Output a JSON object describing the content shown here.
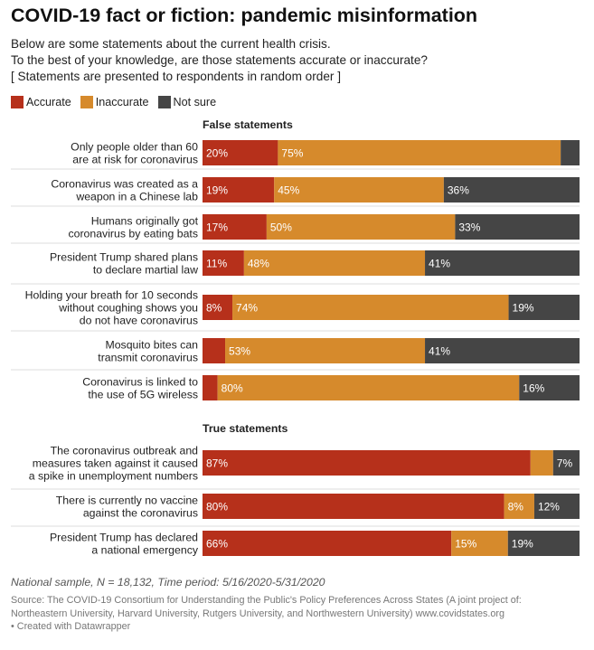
{
  "title": "COVID-19 fact or fiction: pandemic misinformation",
  "subtitle": [
    "Below are some statements about the current health crisis.",
    "To the best of your knowledge, are those statements accurate or inaccurate?",
    "[ Statements are presented to respondents in random order ]"
  ],
  "colors": {
    "accurate": "#b6301b",
    "inaccurate": "#d68a2c",
    "not_sure": "#454545"
  },
  "chart_data": {
    "type": "bar",
    "orientation": "horizontal",
    "stacked": true,
    "normalized_to": 100,
    "legend": {
      "position": "top-left",
      "entries": [
        "Accurate",
        "Inaccurate",
        "Not sure"
      ]
    },
    "groups": [
      {
        "label": "False statements",
        "rows": [
          {
            "label": [
              "Only people older than 60",
              "are at risk for coronavirus"
            ],
            "values": [
              20,
              75,
              5
            ],
            "labels": [
              "20%",
              "75%",
              ""
            ]
          },
          {
            "label": [
              "Coronavirus was created as a",
              "weapon in a Chinese lab"
            ],
            "values": [
              19,
              45,
              36
            ],
            "labels": [
              "19%",
              "45%",
              "36%"
            ]
          },
          {
            "label": [
              "Humans originally got",
              "coronavirus by eating bats"
            ],
            "values": [
              17,
              50,
              33
            ],
            "labels": [
              "17%",
              "50%",
              "33%"
            ]
          },
          {
            "label": [
              "President Trump shared plans",
              "to declare martial law"
            ],
            "values": [
              11,
              48,
              41
            ],
            "labels": [
              "11%",
              "48%",
              "41%"
            ]
          },
          {
            "label": [
              "Holding your breath for 10 seconds",
              "without coughing shows you",
              "do not have coronavirus"
            ],
            "values": [
              8,
              74,
              19
            ],
            "labels": [
              "8%",
              "74%",
              "19%"
            ]
          },
          {
            "label": [
              "Mosquito bites can",
              "transmit coronavirus"
            ],
            "values": [
              6,
              53,
              41
            ],
            "labels": [
              "",
              "53%",
              "41%"
            ]
          },
          {
            "label": [
              "Coronavirus is linked to",
              "the use of 5G wireless"
            ],
            "values": [
              4,
              80,
              16
            ],
            "labels": [
              "",
              "80%",
              "16%"
            ]
          }
        ]
      },
      {
        "label": "True statements",
        "rows": [
          {
            "label": [
              "The coronavirus outbreak and",
              "measures taken against it caused",
              "a spike in unemployment numbers"
            ],
            "values": [
              87,
              6,
              7
            ],
            "labels": [
              "87%",
              "",
              "7%"
            ]
          },
          {
            "label": [
              "There is currently no vaccine",
              "against the coronavirus"
            ],
            "values": [
              80,
              8,
              12
            ],
            "labels": [
              "80%",
              "8%",
              "12%"
            ]
          },
          {
            "label": [
              "President Trump has declared",
              "a national emergency"
            ],
            "values": [
              66,
              15,
              19
            ],
            "labels": [
              "66%",
              "15%",
              "19%"
            ]
          }
        ]
      }
    ]
  },
  "note": "National sample, N = 18,132, Time period: 5/16/2020-5/31/2020",
  "source": [
    "Source: The COVID-19 Consortium for Understanding the Public's Policy Preferences Across States (A joint project of:",
    "Northeastern University, Harvard University, Rutgers University, and Northwestern University) www.covidstates.org",
    " • Created with Datawrapper"
  ]
}
